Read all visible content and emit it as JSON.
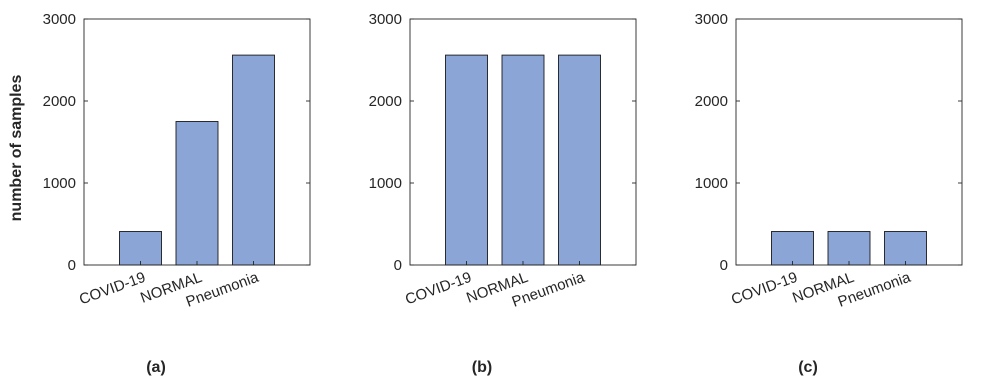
{
  "chart_data": [
    {
      "type": "bar",
      "panel_label": "(a)",
      "ylabel": "number of samples",
      "categories": [
        "COVID-19",
        "NORMAL",
        "Pneumonia"
      ],
      "values": [
        408,
        1750,
        2560
      ],
      "ylim": [
        0,
        3000
      ],
      "yticks": [
        0,
        1000,
        2000,
        3000
      ],
      "bar_color": "#8aa5d6",
      "grid": false
    },
    {
      "type": "bar",
      "panel_label": "(b)",
      "ylabel": "",
      "categories": [
        "COVID-19",
        "NORMAL",
        "Pneumonia"
      ],
      "values": [
        2560,
        2560,
        2560
      ],
      "ylim": [
        0,
        3000
      ],
      "yticks": [
        0,
        1000,
        2000,
        3000
      ],
      "bar_color": "#8aa5d6",
      "grid": false
    },
    {
      "type": "bar",
      "panel_label": "(c)",
      "ylabel": "",
      "categories": [
        "COVID-19",
        "NORMAL",
        "Pneumonia"
      ],
      "values": [
        408,
        408,
        408
      ],
      "ylim": [
        0,
        3000
      ],
      "yticks": [
        0,
        1000,
        2000,
        3000
      ],
      "bar_color": "#8aa5d6",
      "grid": false
    }
  ]
}
